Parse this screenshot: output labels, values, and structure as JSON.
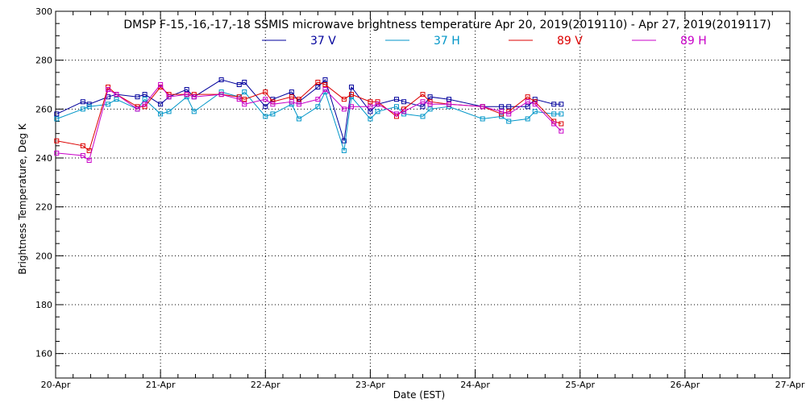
{
  "chart_data": {
    "type": "line",
    "title": "DMSP F-15,-16,-17,-18 SSMIS microwave brightness temperature Apr 20, 2019(2019110) - Apr 27, 2019(2019117)",
    "xlabel": "Date (EST)",
    "ylabel": "Brightness Temperature, Deg K",
    "xlim": [
      0,
      7
    ],
    "ylim": [
      150,
      300
    ],
    "x_ticks": [
      {
        "value": 0,
        "label": "20-Apr"
      },
      {
        "value": 1,
        "label": "21-Apr"
      },
      {
        "value": 2,
        "label": "22-Apr"
      },
      {
        "value": 3,
        "label": "23-Apr"
      },
      {
        "value": 4,
        "label": "24-Apr"
      },
      {
        "value": 5,
        "label": "25-Apr"
      },
      {
        "value": 6,
        "label": "26-Apr"
      },
      {
        "value": 7,
        "label": "27-Apr"
      }
    ],
    "y_ticks": [
      {
        "value": 160,
        "label": "160"
      },
      {
        "value": 180,
        "label": "180"
      },
      {
        "value": 200,
        "label": "200"
      },
      {
        "value": 220,
        "label": "220"
      },
      {
        "value": 240,
        "label": "240"
      },
      {
        "value": 260,
        "label": "260"
      },
      {
        "value": 280,
        "label": "280"
      },
      {
        "value": 300,
        "label": "300"
      }
    ],
    "grid": true,
    "legend_position": "top-center",
    "series": [
      {
        "name": "37 V",
        "color": "#00009c",
        "points": [
          [
            0.01,
            258
          ],
          [
            0.26,
            263
          ],
          [
            0.32,
            262
          ],
          [
            0.5,
            265
          ],
          [
            0.58,
            266
          ],
          [
            0.78,
            265
          ],
          [
            0.85,
            266
          ],
          [
            1.0,
            262
          ],
          [
            1.08,
            265
          ],
          [
            1.25,
            268
          ],
          [
            1.32,
            265
          ],
          [
            1.58,
            272
          ],
          [
            1.75,
            270
          ],
          [
            1.8,
            271
          ],
          [
            2.0,
            261
          ],
          [
            2.07,
            264
          ],
          [
            2.25,
            267
          ],
          [
            2.32,
            263
          ],
          [
            2.5,
            269
          ],
          [
            2.57,
            272
          ],
          [
            2.75,
            247
          ],
          [
            2.82,
            269
          ],
          [
            3.0,
            259
          ],
          [
            3.07,
            262
          ],
          [
            3.25,
            264
          ],
          [
            3.32,
            263
          ],
          [
            3.5,
            261
          ],
          [
            3.57,
            265
          ],
          [
            3.75,
            264
          ],
          [
            4.07,
            261
          ],
          [
            4.25,
            261
          ],
          [
            4.32,
            261
          ],
          [
            4.5,
            261
          ],
          [
            4.57,
            264
          ],
          [
            4.75,
            262
          ],
          [
            4.82,
            262
          ]
        ]
      },
      {
        "name": "37 H",
        "color": "#0096c8",
        "points": [
          [
            0.01,
            256
          ],
          [
            0.26,
            260
          ],
          [
            0.32,
            261
          ],
          [
            0.5,
            262
          ],
          [
            0.58,
            264
          ],
          [
            0.78,
            260
          ],
          [
            0.85,
            264
          ],
          [
            1.0,
            258
          ],
          [
            1.08,
            259
          ],
          [
            1.25,
            265
          ],
          [
            1.32,
            259
          ],
          [
            1.58,
            267
          ],
          [
            1.75,
            265
          ],
          [
            1.8,
            267
          ],
          [
            2.0,
            257
          ],
          [
            2.07,
            258
          ],
          [
            2.25,
            262
          ],
          [
            2.32,
            256
          ],
          [
            2.5,
            261
          ],
          [
            2.57,
            267
          ],
          [
            2.75,
            243
          ],
          [
            2.82,
            265
          ],
          [
            3.0,
            256
          ],
          [
            3.07,
            259
          ],
          [
            3.25,
            261
          ],
          [
            3.32,
            258
          ],
          [
            3.5,
            257
          ],
          [
            3.57,
            260
          ],
          [
            3.75,
            261
          ],
          [
            4.07,
            256
          ],
          [
            4.25,
            257
          ],
          [
            4.32,
            255
          ],
          [
            4.5,
            256
          ],
          [
            4.57,
            259
          ],
          [
            4.75,
            258
          ],
          [
            4.82,
            258
          ]
        ]
      },
      {
        "name": "89 V",
        "color": "#dc0000",
        "points": [
          [
            0.01,
            247
          ],
          [
            0.26,
            245
          ],
          [
            0.32,
            243
          ],
          [
            0.5,
            269
          ],
          [
            0.58,
            266
          ],
          [
            0.78,
            261
          ],
          [
            0.85,
            261
          ],
          [
            1.0,
            269
          ],
          [
            1.08,
            266
          ],
          [
            1.25,
            266
          ],
          [
            1.32,
            266
          ],
          [
            1.58,
            266
          ],
          [
            1.75,
            265
          ],
          [
            1.8,
            264
          ],
          [
            2.0,
            267
          ],
          [
            2.07,
            263
          ],
          [
            2.25,
            265
          ],
          [
            2.32,
            264
          ],
          [
            2.5,
            271
          ],
          [
            2.57,
            270
          ],
          [
            2.75,
            264
          ],
          [
            2.82,
            266
          ],
          [
            3.0,
            263
          ],
          [
            3.07,
            263
          ],
          [
            3.25,
            257
          ],
          [
            3.32,
            260
          ],
          [
            3.5,
            266
          ],
          [
            3.57,
            263
          ],
          [
            3.75,
            262
          ],
          [
            4.07,
            261
          ],
          [
            4.25,
            258
          ],
          [
            4.32,
            259
          ],
          [
            4.5,
            265
          ],
          [
            4.57,
            263
          ],
          [
            4.75,
            255
          ],
          [
            4.82,
            254
          ]
        ]
      },
      {
        "name": "89 H",
        "color": "#c800c8",
        "points": [
          [
            0.01,
            242
          ],
          [
            0.26,
            241
          ],
          [
            0.32,
            239
          ],
          [
            0.5,
            268
          ],
          [
            0.58,
            266
          ],
          [
            0.78,
            260
          ],
          [
            0.85,
            262
          ],
          [
            1.0,
            270
          ],
          [
            1.08,
            265
          ],
          [
            1.25,
            266
          ],
          [
            1.32,
            265
          ],
          [
            1.58,
            266
          ],
          [
            1.75,
            264
          ],
          [
            1.8,
            262
          ],
          [
            2.0,
            264
          ],
          [
            2.07,
            262
          ],
          [
            2.25,
            263
          ],
          [
            2.32,
            262
          ],
          [
            2.5,
            264
          ],
          [
            2.57,
            268
          ],
          [
            2.75,
            260
          ],
          [
            2.82,
            261
          ],
          [
            3.0,
            261
          ],
          [
            3.07,
            262
          ],
          [
            3.25,
            258
          ],
          [
            3.32,
            259
          ],
          [
            3.5,
            263
          ],
          [
            3.57,
            262
          ],
          [
            3.75,
            262
          ],
          [
            4.07,
            261
          ],
          [
            4.25,
            259
          ],
          [
            4.32,
            258
          ],
          [
            4.5,
            263
          ],
          [
            4.57,
            262
          ],
          [
            4.75,
            254
          ],
          [
            4.82,
            251
          ]
        ]
      }
    ]
  }
}
